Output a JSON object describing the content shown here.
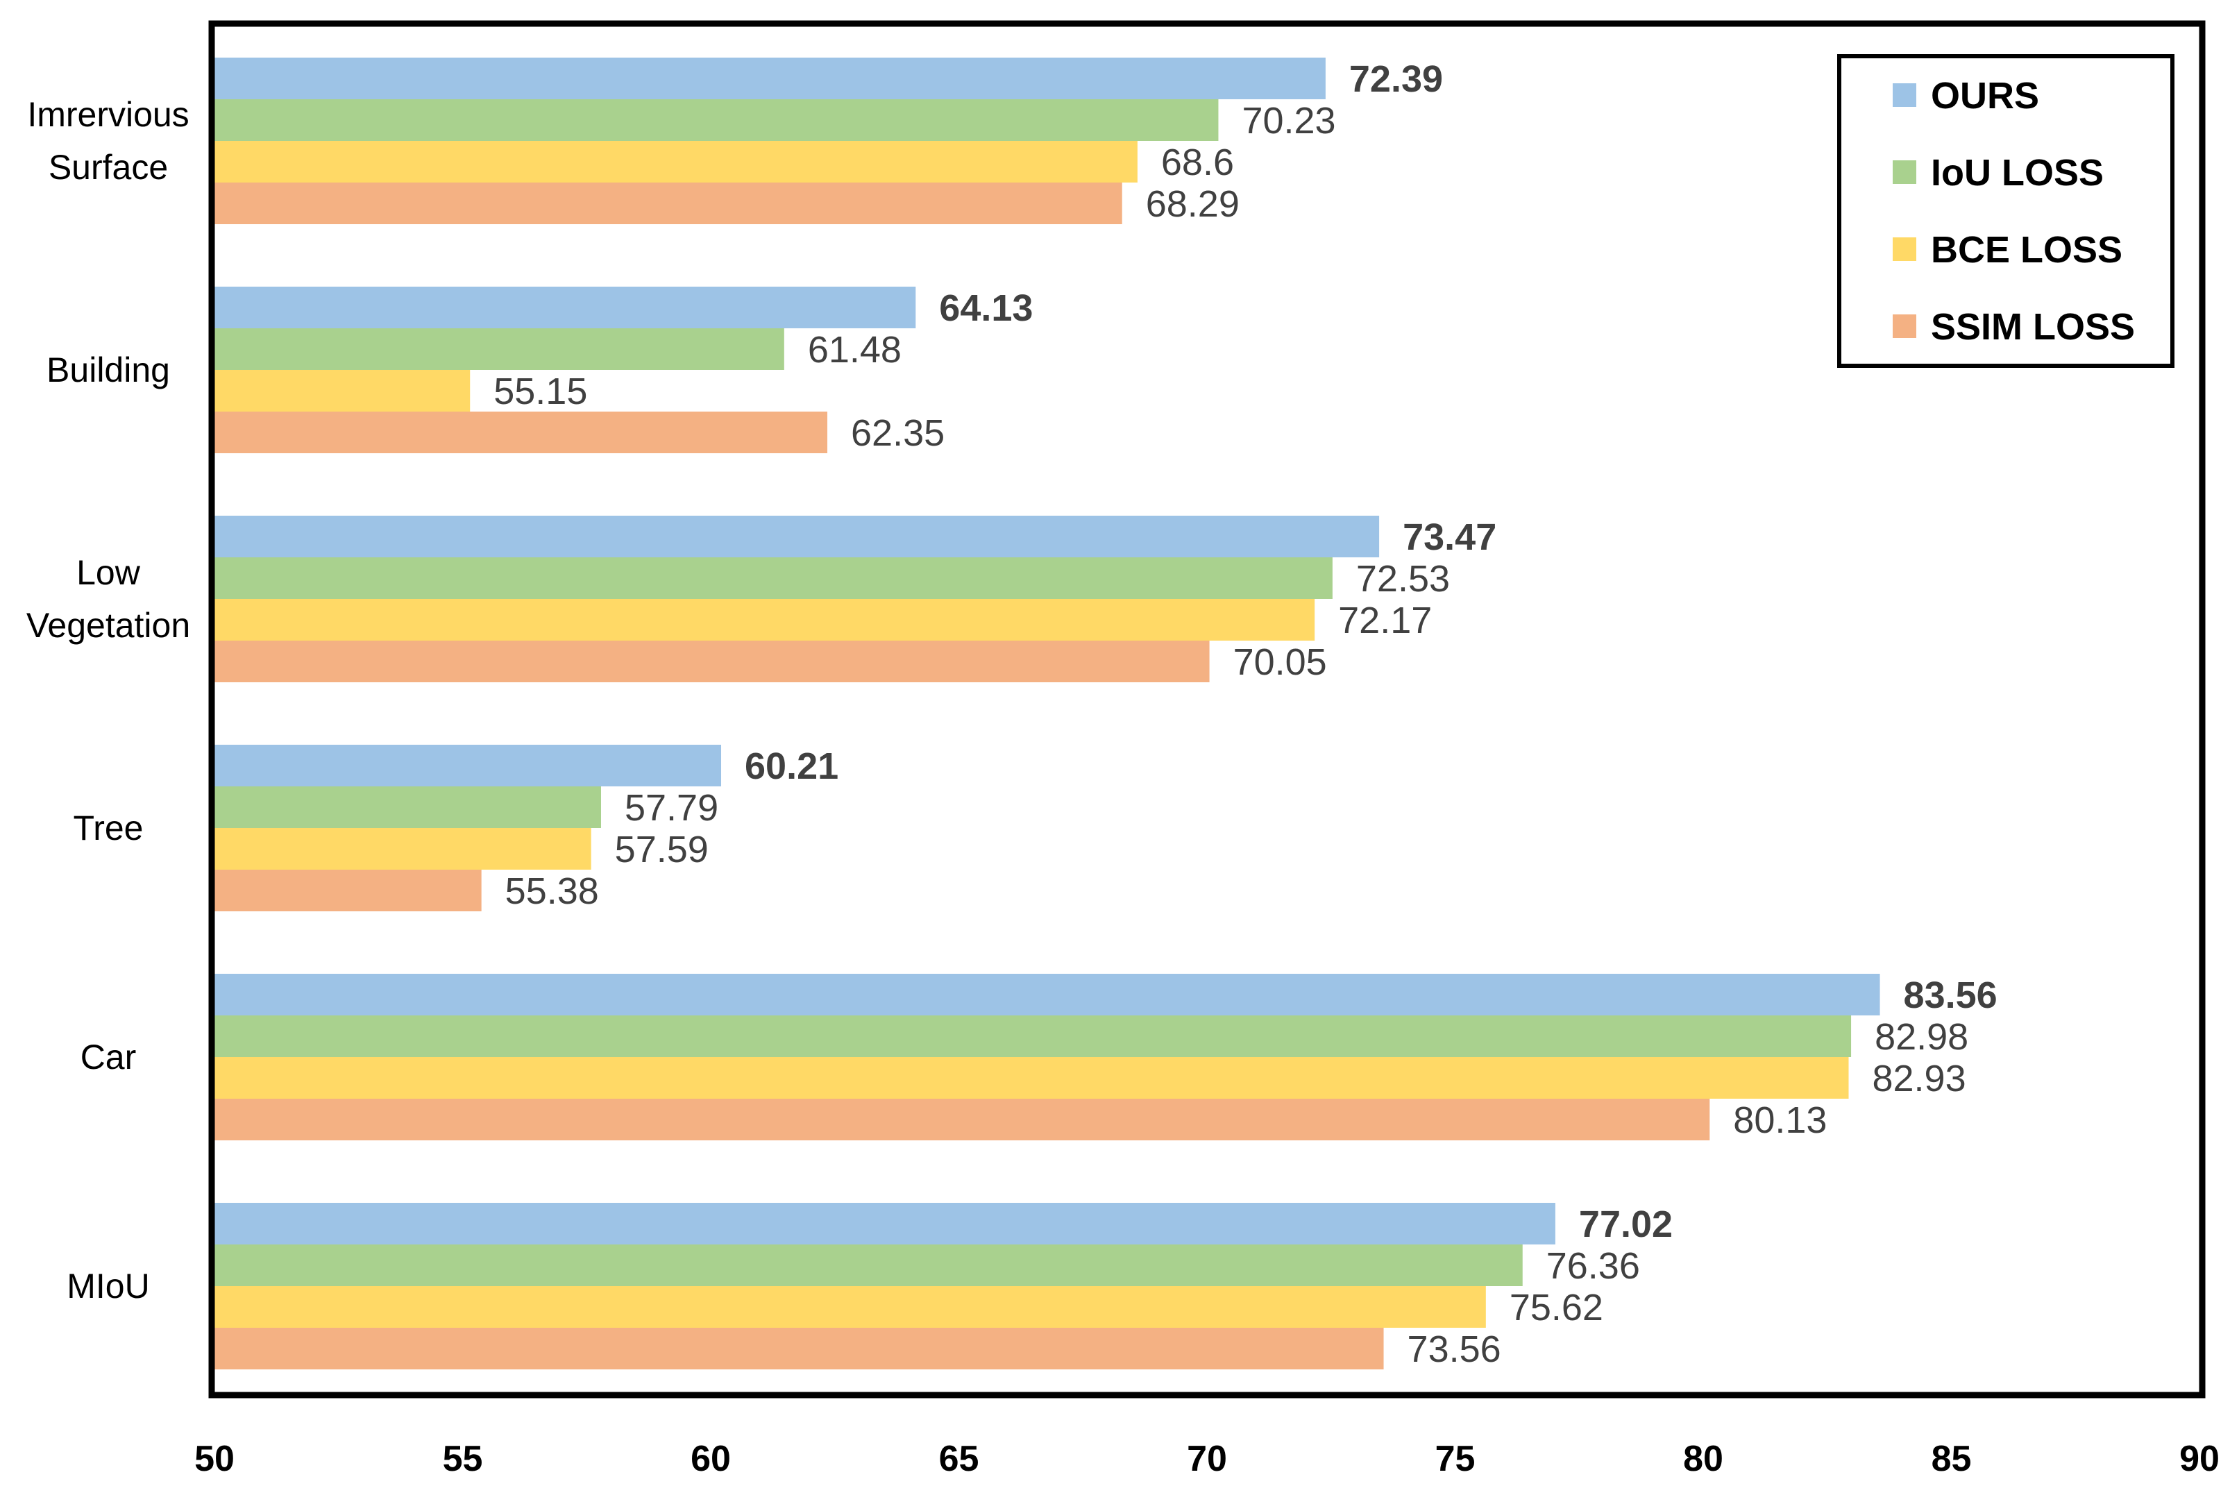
{
  "colors": {
    "ours": "#9dc3e6",
    "iou": "#a9d18e",
    "bce": "#ffd966",
    "ssim": "#f4b183",
    "highlight": "#e00000",
    "value_text": "#404040"
  },
  "chart_data": {
    "type": "bar",
    "orientation": "horizontal",
    "title": "",
    "xlabel": "",
    "ylabel": "",
    "xlim": [
      50,
      90
    ],
    "x_ticks": [
      "50",
      "55",
      "60",
      "65",
      "70",
      "75",
      "80",
      "85",
      "90"
    ],
    "grid": false,
    "legend_position": "top-right",
    "categories": [
      [
        "Imrervious",
        "Surface"
      ],
      [
        "Building"
      ],
      [
        "Low",
        "Vegetation"
      ],
      [
        "Tree"
      ],
      [
        "Car"
      ],
      [
        "MIoU"
      ]
    ],
    "series": [
      {
        "name": "OURS",
        "color_key": "ours",
        "highlight": true,
        "values": [
          72.39,
          64.13,
          73.47,
          60.21,
          83.56,
          77.02
        ],
        "labels": [
          "72.39",
          "64.13",
          "73.47",
          "60.21",
          "83.56",
          "77.02"
        ]
      },
      {
        "name": "IoU LOSS",
        "color_key": "iou",
        "highlight": false,
        "values": [
          70.23,
          61.48,
          72.53,
          57.79,
          82.98,
          76.36
        ],
        "labels": [
          "70.23",
          "61.48",
          "72.53",
          "57.79",
          "82.98",
          "76.36"
        ]
      },
      {
        "name": "BCE LOSS",
        "color_key": "bce",
        "highlight": false,
        "values": [
          68.6,
          55.15,
          72.17,
          57.59,
          82.93,
          75.62
        ],
        "labels": [
          "68.6",
          "55.15",
          "72.17",
          "57.59",
          "82.93",
          "75.62"
        ]
      },
      {
        "name": "SSIM LOSS",
        "color_key": "ssim",
        "highlight": false,
        "values": [
          68.29,
          62.35,
          70.05,
          55.38,
          80.13,
          73.56
        ],
        "labels": [
          "68.29",
          "62.35",
          "70.05",
          "55.38",
          "80.13",
          "73.56"
        ]
      }
    ]
  }
}
